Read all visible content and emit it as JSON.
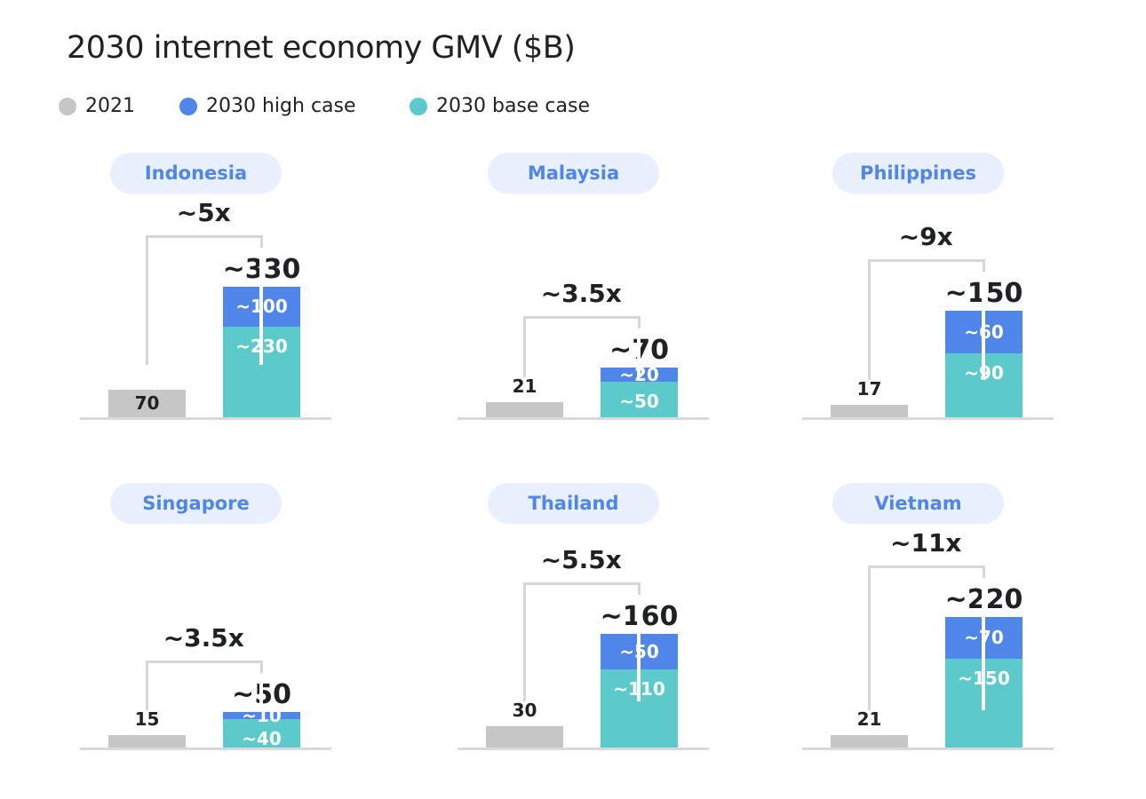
{
  "title": "2030 internet economy GMV ($B)",
  "legend": [
    {
      "label": "2021",
      "color": "#c6c6c6"
    },
    {
      "label": "2030 high case",
      "color": "#4f86e8"
    },
    {
      "label": "2030 base case",
      "color": "#5ccaca"
    }
  ],
  "chart_data": [
    {
      "type": "bar",
      "title": "Indonesia",
      "multiple": "~5x",
      "value_2021": 70,
      "label_2021": "70",
      "high_case": 100,
      "high_label": "~100",
      "base_case": 230,
      "base_label": "~230",
      "total": 330,
      "total_label": "~330"
    },
    {
      "type": "bar",
      "title": "Malaysia",
      "multiple": "~3.5x",
      "value_2021": 21,
      "label_2021": "21",
      "high_case": 20,
      "high_label": "~20",
      "base_case": 50,
      "base_label": "~50",
      "total": 70,
      "total_label": "~70"
    },
    {
      "type": "bar",
      "title": "Philippines",
      "multiple": "~9x",
      "value_2021": 17,
      "label_2021": "17",
      "high_case": 60,
      "high_label": "~60",
      "base_case": 90,
      "base_label": "~90",
      "total": 150,
      "total_label": "~150"
    },
    {
      "type": "bar",
      "title": "Singapore",
      "multiple": "~3.5x",
      "value_2021": 15,
      "label_2021": "15",
      "high_case": 10,
      "high_label": "~10",
      "base_case": 40,
      "base_label": "~40",
      "total": 50,
      "total_label": "~50"
    },
    {
      "type": "bar",
      "title": "Thailand",
      "multiple": "~5.5x",
      "value_2021": 30,
      "label_2021": "30",
      "high_case": 50,
      "high_label": "~50",
      "base_case": 110,
      "base_label": "~110",
      "total": 160,
      "total_label": "~160"
    },
    {
      "type": "bar",
      "title": "Vietnam",
      "multiple": "~11x",
      "value_2021": 21,
      "label_2021": "21",
      "high_case": 70,
      "high_label": "~70",
      "base_case": 150,
      "base_label": "~150",
      "total": 220,
      "total_label": "~220"
    }
  ]
}
